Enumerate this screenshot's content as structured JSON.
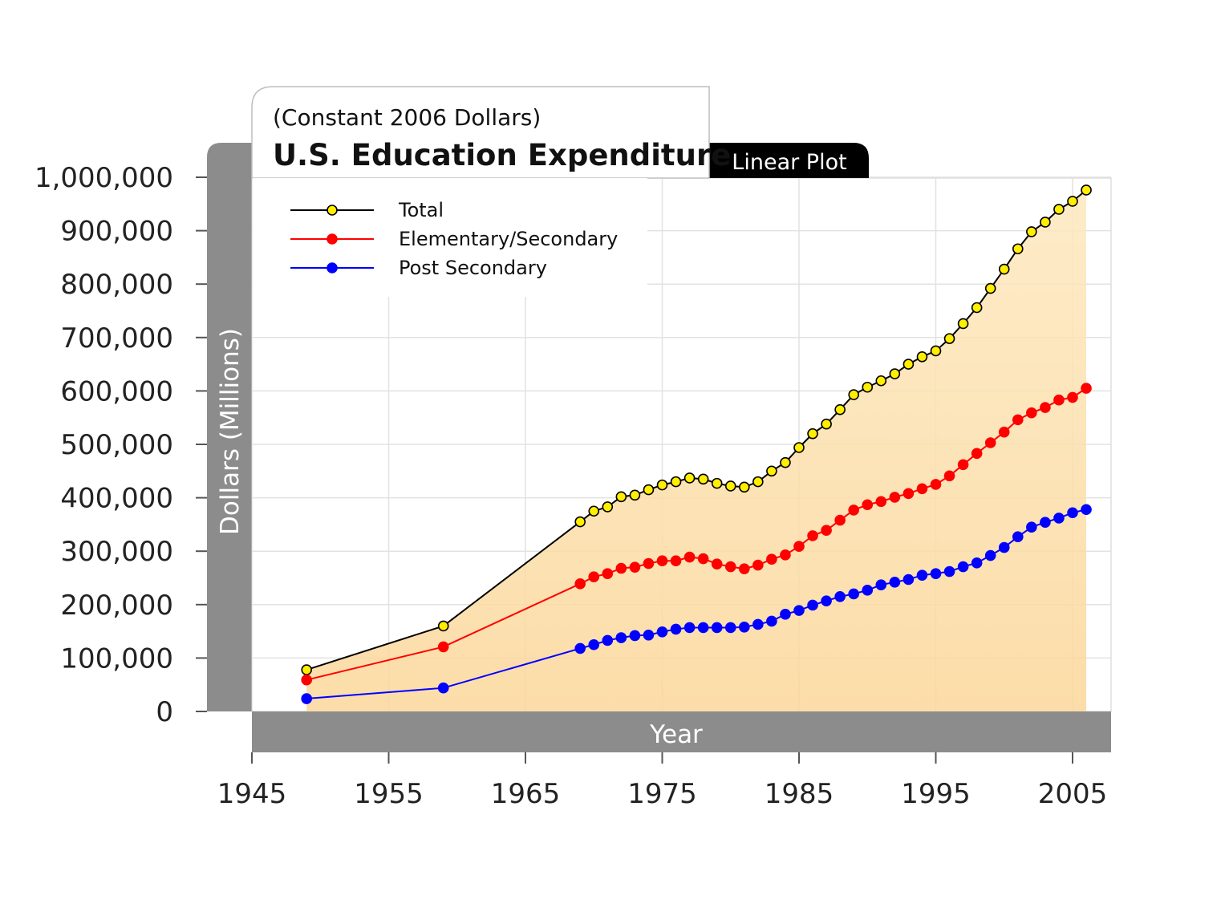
{
  "chart_data": {
    "type": "line",
    "subtitle": "(Constant 2006 Dollars)",
    "title": "U.S. Education Expenditure",
    "scale_tab": "Linear Plot",
    "xlabel": "Year",
    "ylabel": "Dollars (Millions)",
    "xlim": [
      1945,
      2008
    ],
    "ylim": [
      0,
      1000000
    ],
    "x_ticks": [
      "1945",
      "1955",
      "1965",
      "1975",
      "1985",
      "1995",
      "2005"
    ],
    "y_ticks": [
      "0",
      "100,000",
      "200,000",
      "300,000",
      "400,000",
      "500,000",
      "600,000",
      "700,000",
      "800,000",
      "900,000",
      "1,000,000"
    ],
    "grid": true,
    "legend_position": "top-left",
    "x": [
      1949,
      1959,
      1969,
      1970,
      1971,
      1972,
      1973,
      1974,
      1975,
      1976,
      1977,
      1978,
      1979,
      1980,
      1981,
      1982,
      1983,
      1984,
      1985,
      1986,
      1987,
      1988,
      1989,
      1990,
      1991,
      1992,
      1993,
      1994,
      1995,
      1996,
      1997,
      1998,
      1999,
      2000,
      2001,
      2002,
      2003,
      2004,
      2005,
      2006
    ],
    "series": [
      {
        "name": "Total",
        "line_color": "#000000",
        "marker_color": "#ffee00",
        "marker_edge": "#000000",
        "values": [
          78000,
          160000,
          355000,
          375000,
          383000,
          402000,
          405000,
          415000,
          424000,
          430000,
          437000,
          435000,
          427000,
          422000,
          420000,
          430000,
          450000,
          466000,
          494000,
          520000,
          538000,
          565000,
          593000,
          607000,
          619000,
          632000,
          650000,
          664000,
          675000,
          698000,
          726000,
          756000,
          792000,
          828000,
          866000,
          898000,
          916000,
          940000,
          955000,
          976000
        ]
      },
      {
        "name": "Elementary/Secondary",
        "line_color": "#ff0000",
        "marker_color": "#ff0000",
        "marker_edge": "#ff0000",
        "values": [
          59000,
          121000,
          239000,
          252000,
          258000,
          268000,
          270000,
          277000,
          282000,
          282000,
          289000,
          286000,
          276000,
          271000,
          267000,
          274000,
          285000,
          293000,
          309000,
          329000,
          339000,
          358000,
          377000,
          387000,
          393000,
          401000,
          408000,
          417000,
          425000,
          441000,
          462000,
          483000,
          503000,
          523000,
          546000,
          559000,
          569000,
          583000,
          588000,
          605000
        ]
      },
      {
        "name": "Post Secondary",
        "line_color": "#0000ff",
        "marker_color": "#0000ff",
        "marker_edge": "#0000ff",
        "values": [
          24000,
          44000,
          118000,
          125000,
          133000,
          138000,
          142000,
          143000,
          149000,
          154000,
          157000,
          157000,
          157000,
          157000,
          158000,
          163000,
          169000,
          182000,
          189000,
          199000,
          207000,
          215000,
          220000,
          227000,
          237000,
          242000,
          247000,
          255000,
          258000,
          262000,
          271000,
          278000,
          292000,
          307000,
          327000,
          345000,
          354000,
          362000,
          372000,
          378000
        ]
      }
    ]
  }
}
